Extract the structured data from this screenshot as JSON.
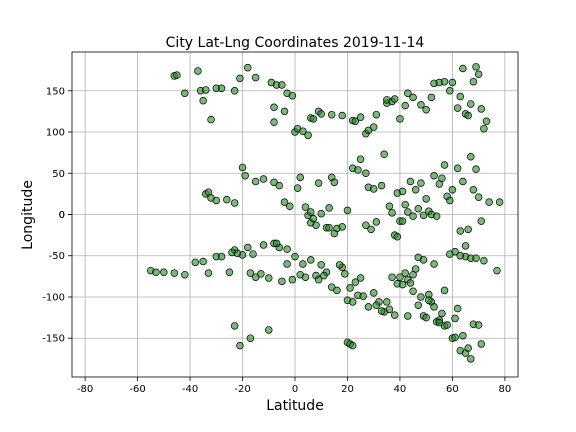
{
  "chart_data": {
    "type": "scatter",
    "title": "City Lat-Lng Coordinates  2019-11-14",
    "xlabel": "Latitude",
    "ylabel": "Longitude",
    "xlim": [
      -85,
      85
    ],
    "ylim": [
      -197,
      197
    ],
    "xticks": [
      "-80",
      "-60",
      "-40",
      "-20",
      "0",
      "20",
      "40",
      "60",
      "80"
    ],
    "yticks": [
      "-150",
      "-100",
      "-50",
      "0",
      "50",
      "100",
      "150"
    ],
    "grid": true,
    "marker_face": "#228b22",
    "marker_edge": "#000000",
    "points": [
      [
        -46,
        168
      ],
      [
        -45,
        169
      ],
      [
        -42,
        147
      ],
      [
        -37,
        174
      ],
      [
        -36,
        150
      ],
      [
        -35,
        138
      ],
      [
        -34,
        151
      ],
      [
        -32,
        115
      ],
      [
        -30,
        153
      ],
      [
        -28,
        153
      ],
      [
        -23,
        150
      ],
      [
        -21,
        165
      ],
      [
        -18,
        178
      ],
      [
        -15,
        166
      ],
      [
        -9,
        160
      ],
      [
        -7,
        157
      ],
      [
        -5,
        157
      ],
      [
        -3,
        147
      ],
      [
        -1,
        144
      ],
      [
        -8,
        130
      ],
      [
        -8,
        112
      ],
      [
        -4,
        125
      ],
      [
        0,
        100
      ],
      [
        1,
        104
      ],
      [
        3,
        101
      ],
      [
        5,
        96
      ],
      [
        6,
        117
      ],
      [
        7,
        116
      ],
      [
        9,
        125
      ],
      [
        10,
        122
      ],
      [
        14,
        121
      ],
      [
        18,
        120
      ],
      [
        22,
        114
      ],
      [
        23,
        113
      ],
      [
        25,
        118
      ],
      [
        27,
        98
      ],
      [
        28,
        102
      ],
      [
        30,
        106
      ],
      [
        31,
        121
      ],
      [
        35,
        135
      ],
      [
        35,
        139
      ],
      [
        37,
        137
      ],
      [
        38,
        140
      ],
      [
        40,
        116
      ],
      [
        42,
        132
      ],
      [
        43,
        147
      ],
      [
        45,
        142
      ],
      [
        48,
        133
      ],
      [
        50,
        127
      ],
      [
        52,
        142
      ],
      [
        53,
        159
      ],
      [
        55,
        160
      ],
      [
        57,
        161
      ],
      [
        59,
        150
      ],
      [
        60,
        160
      ],
      [
        62,
        129
      ],
      [
        63,
        143
      ],
      [
        64,
        177
      ],
      [
        65,
        122
      ],
      [
        66,
        120
      ],
      [
        67,
        134
      ],
      [
        68,
        161
      ],
      [
        69,
        179
      ],
      [
        70,
        170
      ],
      [
        71,
        128
      ],
      [
        72,
        104
      ],
      [
        73,
        113
      ],
      [
        -34,
        25
      ],
      [
        -33,
        27
      ],
      [
        -32,
        20
      ],
      [
        -30,
        17
      ],
      [
        -26,
        18
      ],
      [
        -23,
        14
      ],
      [
        -20,
        57
      ],
      [
        -19,
        47
      ],
      [
        -15,
        40
      ],
      [
        -12,
        43
      ],
      [
        -8,
        39
      ],
      [
        -6,
        35
      ],
      [
        -4,
        15
      ],
      [
        -2,
        10
      ],
      [
        1,
        32
      ],
      [
        2,
        45
      ],
      [
        4,
        9
      ],
      [
        5,
        -1
      ],
      [
        6,
        3
      ],
      [
        8,
        -13
      ],
      [
        9,
        38
      ],
      [
        10,
        1
      ],
      [
        12,
        -16
      ],
      [
        13,
        8
      ],
      [
        14,
        45
      ],
      [
        15,
        39
      ],
      [
        16,
        -17
      ],
      [
        18,
        -15
      ],
      [
        20,
        5
      ],
      [
        22,
        56
      ],
      [
        24,
        54
      ],
      [
        25,
        67
      ],
      [
        27,
        50
      ],
      [
        28,
        33
      ],
      [
        30,
        31
      ],
      [
        31,
        -9
      ],
      [
        33,
        35
      ],
      [
        34,
        73
      ],
      [
        36,
        10
      ],
      [
        37,
        2
      ],
      [
        38,
        -25
      ],
      [
        39,
        26
      ],
      [
        40,
        -8
      ],
      [
        41,
        28
      ],
      [
        42,
        12
      ],
      [
        43,
        3
      ],
      [
        44,
        40
      ],
      [
        45,
        -2
      ],
      [
        46,
        30
      ],
      [
        47,
        7
      ],
      [
        48,
        38
      ],
      [
        49,
        -1
      ],
      [
        50,
        19
      ],
      [
        51,
        4
      ],
      [
        52,
        0
      ],
      [
        53,
        47
      ],
      [
        54,
        -2
      ],
      [
        55,
        37
      ],
      [
        56,
        44
      ],
      [
        57,
        60
      ],
      [
        58,
        22
      ],
      [
        59,
        17
      ],
      [
        60,
        30
      ],
      [
        61,
        -45
      ],
      [
        62,
        56
      ],
      [
        63,
        -20
      ],
      [
        64,
        40
      ],
      [
        65,
        -51
      ],
      [
        66,
        -18
      ],
      [
        67,
        70
      ],
      [
        68,
        30
      ],
      [
        69,
        55
      ],
      [
        70,
        21
      ],
      [
        74,
        15
      ],
      [
        78,
        15
      ],
      [
        -55,
        -68
      ],
      [
        -53,
        -70
      ],
      [
        -50,
        -70
      ],
      [
        -46,
        -71
      ],
      [
        -42,
        -73
      ],
      [
        -38,
        -58
      ],
      [
        -35,
        -57
      ],
      [
        -33,
        -71
      ],
      [
        -30,
        -51
      ],
      [
        -28,
        -51
      ],
      [
        -25,
        -70
      ],
      [
        -23,
        -43
      ],
      [
        -20,
        -49
      ],
      [
        -17,
        -71
      ],
      [
        -15,
        -76
      ],
      [
        -13,
        -72
      ],
      [
        -12,
        -37
      ],
      [
        -10,
        -77
      ],
      [
        -8,
        -35
      ],
      [
        -6,
        -40
      ],
      [
        -5,
        -81
      ],
      [
        -3,
        -60
      ],
      [
        -1,
        -79
      ],
      [
        0,
        -51
      ],
      [
        2,
        -73
      ],
      [
        4,
        -76
      ],
      [
        6,
        -55
      ],
      [
        8,
        -74
      ],
      [
        10,
        -61
      ],
      [
        12,
        -70
      ],
      [
        14,
        -88
      ],
      [
        16,
        -92
      ],
      [
        18,
        -64
      ],
      [
        20,
        -104
      ],
      [
        22,
        -106
      ],
      [
        24,
        -98
      ],
      [
        26,
        -99
      ],
      [
        28,
        -112
      ],
      [
        30,
        -95
      ],
      [
        32,
        -106
      ],
      [
        34,
        -118
      ],
      [
        36,
        -115
      ],
      [
        38,
        -122
      ],
      [
        39,
        -84
      ],
      [
        40,
        -76
      ],
      [
        41,
        -85
      ],
      [
        42,
        -71
      ],
      [
        43,
        -79
      ],
      [
        44,
        -83
      ],
      [
        45,
        -93
      ],
      [
        46,
        -66
      ],
      [
        47,
        -110
      ],
      [
        48,
        -100
      ],
      [
        49,
        -123
      ],
      [
        50,
        -125
      ],
      [
        51,
        -97
      ],
      [
        52,
        -106
      ],
      [
        53,
        -112
      ],
      [
        54,
        -130
      ],
      [
        55,
        -128
      ],
      [
        56,
        -120
      ],
      [
        57,
        -135
      ],
      [
        58,
        -134
      ],
      [
        60,
        -150
      ],
      [
        61,
        -149
      ],
      [
        62,
        -114
      ],
      [
        63,
        -165
      ],
      [
        64,
        -147
      ],
      [
        65,
        -168
      ],
      [
        66,
        -162
      ],
      [
        67,
        -175
      ],
      [
        68,
        -133
      ],
      [
        70,
        -134
      ],
      [
        71,
        -157
      ],
      [
        72,
        -56
      ],
      [
        77,
        -68
      ],
      [
        -23,
        -135
      ],
      [
        -21,
        -159
      ],
      [
        -17,
        -150
      ],
      [
        -10,
        -140
      ],
      [
        20,
        -155
      ],
      [
        21,
        -157
      ],
      [
        22,
        -159
      ],
      [
        -24,
        -46
      ],
      [
        -22,
        -47
      ],
      [
        -18,
        -40
      ],
      [
        -16,
        -48
      ],
      [
        -7,
        -35
      ],
      [
        -3,
        -42
      ],
      [
        3,
        -60
      ],
      [
        6,
        -10
      ],
      [
        7,
        -5
      ],
      [
        9,
        -79
      ],
      [
        11,
        -74
      ],
      [
        13,
        -16
      ],
      [
        15,
        -23
      ],
      [
        17,
        -61
      ],
      [
        19,
        -72
      ],
      [
        21,
        -89
      ],
      [
        23,
        -82
      ],
      [
        25,
        -77
      ],
      [
        27,
        -13
      ],
      [
        29,
        -18
      ],
      [
        31,
        -110
      ],
      [
        33,
        -117
      ],
      [
        35,
        -106
      ],
      [
        37,
        -76
      ],
      [
        39,
        -27
      ],
      [
        41,
        -8
      ],
      [
        43,
        -123
      ],
      [
        45,
        -73
      ],
      [
        47,
        -52
      ],
      [
        49,
        -55
      ],
      [
        51,
        -104
      ],
      [
        53,
        -60
      ],
      [
        55,
        -131
      ],
      [
        57,
        -92
      ],
      [
        59,
        -48
      ],
      [
        61,
        -126
      ],
      [
        63,
        -50
      ],
      [
        65,
        -38
      ],
      [
        67,
        -53
      ],
      [
        69,
        -53
      ],
      [
        71,
        -8
      ]
    ]
  }
}
